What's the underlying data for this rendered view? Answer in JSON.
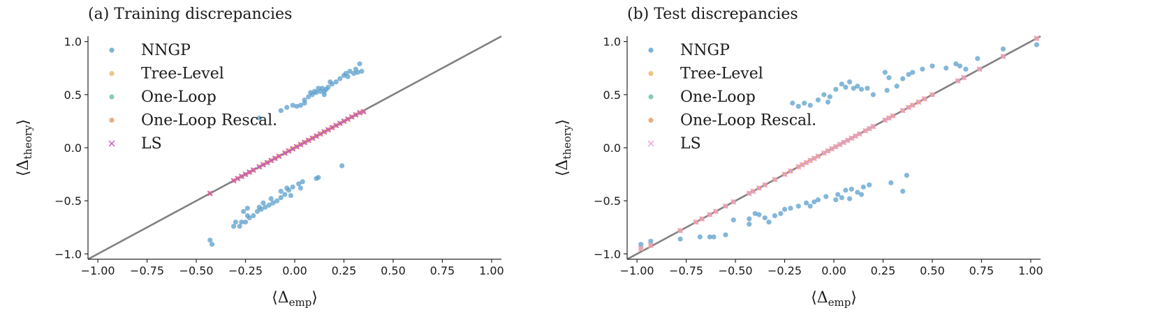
{
  "chart_data": [
    {
      "type": "scatter",
      "title": "(a) Training discrepancies",
      "xlabel": "⟨Δ",
      "xlabel_sub": "emp",
      "xlabel_close": "⟩",
      "ylabel": "⟨Δ",
      "ylabel_sub": "theory",
      "ylabel_close": "⟩",
      "xlim": [
        -1.05,
        1.05
      ],
      "ylim": [
        -1.05,
        1.05
      ],
      "xticks": [
        -1.0,
        -0.75,
        -0.5,
        -0.25,
        0.0,
        0.25,
        0.5,
        0.75,
        1.0
      ],
      "xtick_labels": [
        "−1.00",
        "−0.75",
        "−0.50",
        "−0.25",
        "0.00",
        "0.25",
        "0.50",
        "0.75",
        "1.00"
      ],
      "yticks": [
        -1.0,
        -0.5,
        0.0,
        0.5,
        1.0
      ],
      "ytick_labels": [
        "−1.0",
        "−0.5",
        "0.0",
        "0.5",
        "1.0"
      ],
      "legend": [
        "NNGP",
        "Tree-Level",
        "One-Loop",
        "One-Loop Rescal.",
        "LS"
      ],
      "legend_position": "top-left",
      "reference_line": "y = x",
      "series": [
        {
          "name": "NNGP",
          "points": [
            [
              -0.43,
              -0.87
            ],
            [
              -0.42,
              -0.91
            ],
            [
              -0.31,
              -0.74
            ],
            [
              -0.3,
              -0.7
            ],
            [
              -0.28,
              -0.74
            ],
            [
              -0.27,
              -0.7
            ],
            [
              -0.25,
              -0.7
            ],
            [
              -0.24,
              -0.64
            ],
            [
              -0.23,
              -0.66
            ],
            [
              -0.21,
              -0.64
            ],
            [
              -0.19,
              -0.6
            ],
            [
              -0.17,
              -0.58
            ],
            [
              -0.15,
              -0.56
            ],
            [
              -0.13,
              -0.54
            ],
            [
              -0.11,
              -0.52
            ],
            [
              -0.09,
              -0.5
            ],
            [
              -0.07,
              -0.47
            ],
            [
              -0.05,
              -0.44
            ],
            [
              -0.03,
              -0.4
            ],
            [
              -0.01,
              -0.37
            ],
            [
              0.02,
              -0.34
            ],
            [
              0.04,
              -0.32
            ],
            [
              0.11,
              -0.29
            ],
            [
              0.12,
              -0.28
            ],
            [
              0.24,
              -0.17
            ],
            [
              -0.26,
              -0.6
            ],
            [
              -0.24,
              -0.57
            ],
            [
              -0.18,
              -0.56
            ],
            [
              -0.16,
              -0.52
            ],
            [
              -0.12,
              -0.48
            ],
            [
              -0.07,
              -0.41
            ],
            [
              -0.04,
              -0.38
            ],
            [
              -0.02,
              -0.45
            ],
            [
              0.03,
              -0.38
            ],
            [
              -0.18,
              0.28
            ],
            [
              -0.07,
              0.35
            ],
            [
              -0.04,
              0.38
            ],
            [
              -0.01,
              0.4
            ],
            [
              0.01,
              0.39
            ],
            [
              0.03,
              0.4
            ],
            [
              0.05,
              0.45
            ],
            [
              0.07,
              0.48
            ],
            [
              0.08,
              0.52
            ],
            [
              0.09,
              0.5
            ],
            [
              0.1,
              0.53
            ],
            [
              0.11,
              0.52
            ],
            [
              0.12,
              0.56
            ],
            [
              0.13,
              0.53
            ],
            [
              0.14,
              0.56
            ],
            [
              0.15,
              0.53
            ],
            [
              0.16,
              0.55
            ],
            [
              0.17,
              0.57
            ],
            [
              0.19,
              0.6
            ],
            [
              0.21,
              0.62
            ],
            [
              0.23,
              0.65
            ],
            [
              0.25,
              0.68
            ],
            [
              0.26,
              0.7
            ],
            [
              0.27,
              0.67
            ],
            [
              0.28,
              0.72
            ],
            [
              0.3,
              0.7
            ],
            [
              0.31,
              0.74
            ],
            [
              0.33,
              0.79
            ],
            [
              0.34,
              0.72
            ],
            [
              0.32,
              0.71
            ],
            [
              0.18,
              0.62
            ],
            [
              0.15,
              0.5
            ],
            [
              0.05,
              0.42
            ]
          ]
        },
        {
          "name": "LS",
          "points": [
            [
              -0.43,
              -0.43
            ],
            [
              -0.31,
              -0.31
            ],
            [
              -0.29,
              -0.29
            ],
            [
              -0.27,
              -0.27
            ],
            [
              -0.25,
              -0.25
            ],
            [
              -0.23,
              -0.23
            ],
            [
              -0.21,
              -0.21
            ],
            [
              -0.18,
              -0.18
            ],
            [
              -0.16,
              -0.16
            ],
            [
              -0.14,
              -0.14
            ],
            [
              -0.12,
              -0.12
            ],
            [
              -0.1,
              -0.1
            ],
            [
              -0.08,
              -0.08
            ],
            [
              -0.05,
              -0.05
            ],
            [
              -0.03,
              -0.03
            ],
            [
              -0.01,
              -0.01
            ],
            [
              0.01,
              0.01
            ],
            [
              0.03,
              0.03
            ],
            [
              0.05,
              0.05
            ],
            [
              0.07,
              0.07
            ],
            [
              0.09,
              0.09
            ],
            [
              0.11,
              0.11
            ],
            [
              0.13,
              0.13
            ],
            [
              0.15,
              0.15
            ],
            [
              0.17,
              0.17
            ],
            [
              0.19,
              0.19
            ],
            [
              0.21,
              0.21
            ],
            [
              0.23,
              0.23
            ],
            [
              0.25,
              0.25
            ],
            [
              0.27,
              0.27
            ],
            [
              0.29,
              0.29
            ],
            [
              0.31,
              0.31
            ],
            [
              0.33,
              0.33
            ],
            [
              0.35,
              0.34
            ]
          ]
        }
      ]
    },
    {
      "type": "scatter",
      "title": "(b) Test discrepancies",
      "xlabel": "⟨Δ",
      "xlabel_sub": "emp",
      "xlabel_close": "⟩",
      "ylabel": "⟨Δ",
      "ylabel_sub": "theory",
      "ylabel_close": "⟩",
      "xlim": [
        -1.05,
        1.05
      ],
      "ylim": [
        -1.05,
        1.05
      ],
      "xticks": [
        -1.0,
        -0.75,
        -0.5,
        -0.25,
        0.0,
        0.25,
        0.5,
        0.75,
        1.0
      ],
      "xtick_labels": [
        "−1.00",
        "−0.75",
        "−0.50",
        "−0.25",
        "0.00",
        "0.25",
        "0.50",
        "0.75",
        "1.00"
      ],
      "yticks": [
        -1.0,
        -0.5,
        0.0,
        0.5,
        1.0
      ],
      "ytick_labels": [
        "−1.0",
        "−0.5",
        "0.0",
        "0.5",
        "1.0"
      ],
      "legend": [
        "NNGP",
        "Tree-Level",
        "One-Loop",
        "One-Loop Rescal.",
        "LS"
      ],
      "legend_position": "top-left",
      "reference_line": "y = x",
      "series": [
        {
          "name": "NNGP",
          "points": [
            [
              -0.98,
              -0.91
            ],
            [
              -0.93,
              -0.88
            ],
            [
              -0.78,
              -0.86
            ],
            [
              -0.68,
              -0.84
            ],
            [
              -0.63,
              -0.84
            ],
            [
              -0.61,
              -0.84
            ],
            [
              -0.55,
              -0.82
            ],
            [
              -0.51,
              -0.68
            ],
            [
              -0.43,
              -0.72
            ],
            [
              -0.38,
              -0.63
            ],
            [
              -0.35,
              -0.66
            ],
            [
              -0.3,
              -0.64
            ],
            [
              -0.25,
              -0.58
            ],
            [
              -0.22,
              -0.57
            ],
            [
              -0.18,
              -0.55
            ],
            [
              -0.14,
              -0.52
            ],
            [
              -0.1,
              -0.51
            ],
            [
              -0.08,
              -0.49
            ],
            [
              -0.04,
              -0.46
            ],
            [
              0.02,
              -0.44
            ],
            [
              0.04,
              -0.47
            ],
            [
              0.06,
              -0.4
            ],
            [
              0.09,
              -0.39
            ],
            [
              0.12,
              -0.42
            ],
            [
              0.15,
              -0.37
            ],
            [
              0.18,
              -0.35
            ],
            [
              0.29,
              -0.33
            ],
            [
              0.35,
              -0.41
            ],
            [
              0.37,
              -0.26
            ],
            [
              -0.43,
              -0.67
            ],
            [
              -0.4,
              -0.62
            ],
            [
              -0.33,
              -0.7
            ],
            [
              -0.27,
              -0.62
            ],
            [
              -0.12,
              -0.55
            ],
            [
              0.01,
              -0.49
            ],
            [
              0.08,
              -0.48
            ],
            [
              0.14,
              -0.44
            ],
            [
              -0.21,
              0.42
            ],
            [
              -0.18,
              0.39
            ],
            [
              -0.15,
              0.42
            ],
            [
              -0.12,
              0.4
            ],
            [
              -0.08,
              0.45
            ],
            [
              -0.05,
              0.5
            ],
            [
              -0.02,
              0.48
            ],
            [
              0.01,
              0.55
            ],
            [
              0.04,
              0.6
            ],
            [
              0.06,
              0.57
            ],
            [
              0.08,
              0.62
            ],
            [
              0.1,
              0.56
            ],
            [
              0.12,
              0.58
            ],
            [
              0.14,
              0.55
            ],
            [
              0.17,
              0.56
            ],
            [
              0.2,
              0.5
            ],
            [
              0.26,
              0.71
            ],
            [
              0.28,
              0.66
            ],
            [
              0.32,
              0.58
            ],
            [
              0.38,
              0.69
            ],
            [
              0.4,
              0.71
            ],
            [
              0.45,
              0.74
            ],
            [
              0.5,
              0.77
            ],
            [
              0.57,
              0.75
            ],
            [
              0.62,
              0.79
            ],
            [
              0.64,
              0.77
            ],
            [
              0.67,
              0.74
            ],
            [
              0.73,
              0.84
            ],
            [
              0.86,
              0.93
            ],
            [
              1.03,
              0.97
            ],
            [
              0.27,
              0.54
            ],
            [
              0.35,
              0.65
            ],
            [
              -0.03,
              0.43
            ]
          ]
        },
        {
          "name": "LS",
          "points": [
            [
              -0.98,
              -0.95
            ],
            [
              -0.93,
              -0.92
            ],
            [
              -0.78,
              -0.78
            ],
            [
              -0.7,
              -0.7
            ],
            [
              -0.67,
              -0.67
            ],
            [
              -0.63,
              -0.63
            ],
            [
              -0.6,
              -0.6
            ],
            [
              -0.55,
              -0.55
            ],
            [
              -0.51,
              -0.51
            ],
            [
              -0.43,
              -0.43
            ],
            [
              -0.41,
              -0.41
            ],
            [
              -0.38,
              -0.38
            ],
            [
              -0.35,
              -0.35
            ],
            [
              -0.3,
              -0.3
            ],
            [
              -0.25,
              -0.25
            ],
            [
              -0.22,
              -0.22
            ],
            [
              -0.18,
              -0.18
            ],
            [
              -0.16,
              -0.16
            ],
            [
              -0.14,
              -0.14
            ],
            [
              -0.12,
              -0.12
            ],
            [
              -0.1,
              -0.1
            ],
            [
              -0.08,
              -0.08
            ],
            [
              -0.05,
              -0.05
            ],
            [
              -0.03,
              -0.03
            ],
            [
              -0.01,
              -0.01
            ],
            [
              0.01,
              0.01
            ],
            [
              0.03,
              0.03
            ],
            [
              0.05,
              0.05
            ],
            [
              0.07,
              0.07
            ],
            [
              0.09,
              0.09
            ],
            [
              0.11,
              0.11
            ],
            [
              0.13,
              0.13
            ],
            [
              0.16,
              0.16
            ],
            [
              0.18,
              0.18
            ],
            [
              0.2,
              0.2
            ],
            [
              0.26,
              0.26
            ],
            [
              0.28,
              0.28
            ],
            [
              0.3,
              0.3
            ],
            [
              0.35,
              0.35
            ],
            [
              0.38,
              0.38
            ],
            [
              0.4,
              0.4
            ],
            [
              0.43,
              0.43
            ],
            [
              0.46,
              0.46
            ],
            [
              0.5,
              0.5
            ],
            [
              0.63,
              0.63
            ],
            [
              0.66,
              0.66
            ],
            [
              0.74,
              0.74
            ],
            [
              0.86,
              0.86
            ],
            [
              1.03,
              1.03
            ]
          ]
        }
      ]
    }
  ],
  "colors": {
    "nngp": "#5b9fcc",
    "tree_level": "#e7b86a",
    "one_loop": "#6cc19c",
    "one_loop_rescal": "#e39a62",
    "ls_train": "#c853c0",
    "ls_test": "#e8a0dc",
    "reference_line": "#808080",
    "axis": "#262626"
  }
}
